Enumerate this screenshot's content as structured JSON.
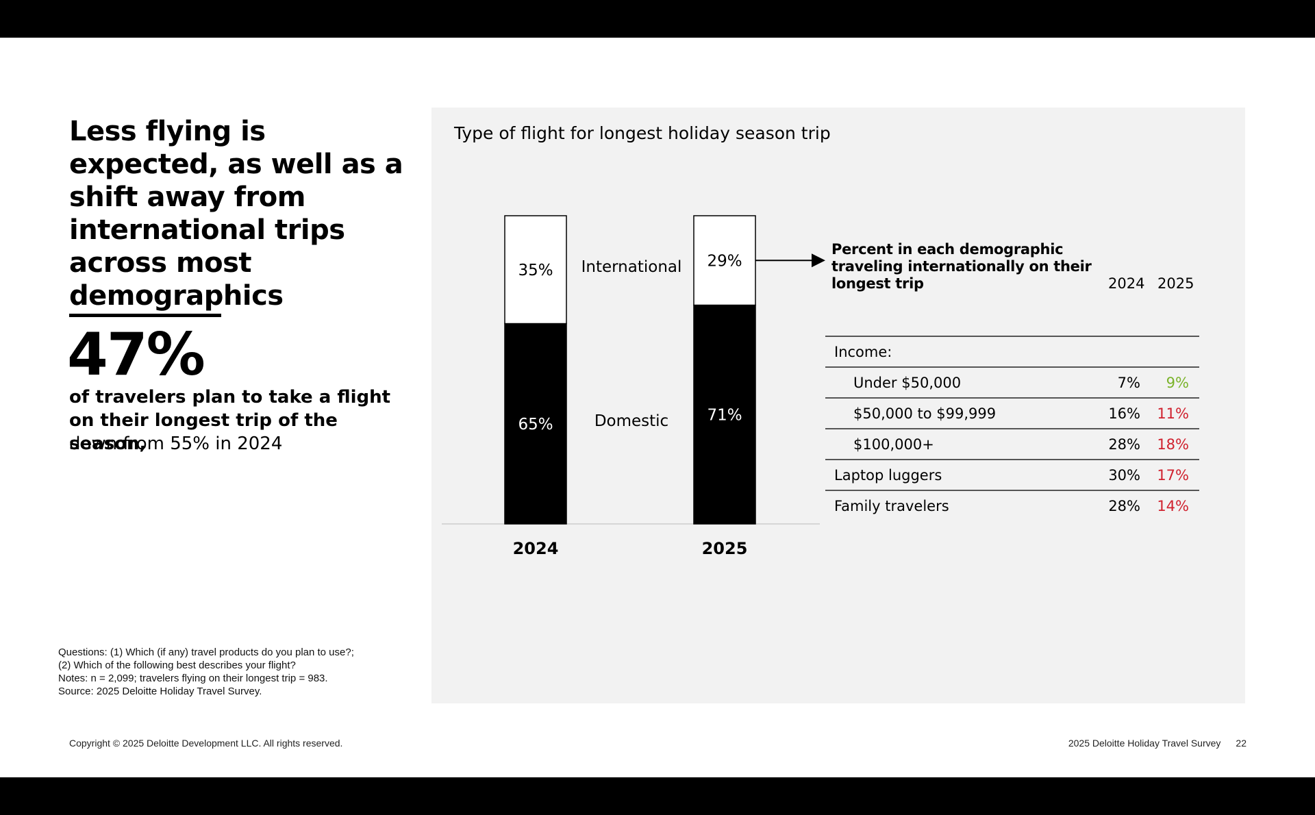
{
  "headline": "Less flying is expected, as well as a shift away from international trips across most demographics",
  "stat": {
    "value": "47%",
    "line_bold": "of travelers plan to take a flight on their longest trip of the season,",
    "line_regular": "down from 55% in 2024"
  },
  "notes": [
    "Questions: (1) Which (if any) travel products do you plan to use?;",
    "(2) Which of the following best describes your flight?",
    "Notes: n = 2,099; travelers flying on their longest trip = 983.",
    "Source: 2025 Deloitte Holiday Travel Survey."
  ],
  "footer": {
    "copyright": "Copyright © 2025 Deloitte Development LLC. All rights reserved.",
    "report": "2025 Deloitte Holiday Travel Survey",
    "page": "22"
  },
  "chart_data": {
    "type": "bar",
    "stacked": true,
    "title": "Type of flight for longest holiday season trip",
    "categories": [
      "2024",
      "2025"
    ],
    "series": [
      {
        "name": "Domestic",
        "values": [
          65,
          71
        ],
        "labels": [
          "65%",
          "71%"
        ],
        "color": "#000000"
      },
      {
        "name": "International",
        "values": [
          35,
          29
        ],
        "labels": [
          "35%",
          "29%"
        ],
        "color": "#ffffff"
      }
    ],
    "ylim": [
      0,
      100
    ]
  },
  "table": {
    "title": "Percent in each demographic traveling internationally on their longest trip",
    "columns": [
      "2024",
      "2025"
    ],
    "rows": [
      {
        "label": "Income:",
        "indent": false,
        "v2024": "",
        "v2025": "",
        "trend": ""
      },
      {
        "label": "Under $50,000",
        "indent": true,
        "v2024": "7%",
        "v2025": "9%",
        "trend": "up"
      },
      {
        "label": "$50,000 to $99,999",
        "indent": true,
        "v2024": "16%",
        "v2025": "11%",
        "trend": "down"
      },
      {
        "label": "$100,000+",
        "indent": true,
        "v2024": "28%",
        "v2025": "18%",
        "trend": "down"
      },
      {
        "label": "Laptop luggers",
        "indent": false,
        "v2024": "30%",
        "v2025": "17%",
        "trend": "down"
      },
      {
        "label": "Family travelers",
        "indent": false,
        "v2024": "28%",
        "v2025": "14%",
        "trend": "down"
      }
    ],
    "colors": {
      "up": "#7ab32a",
      "down": "#d0212e"
    }
  }
}
